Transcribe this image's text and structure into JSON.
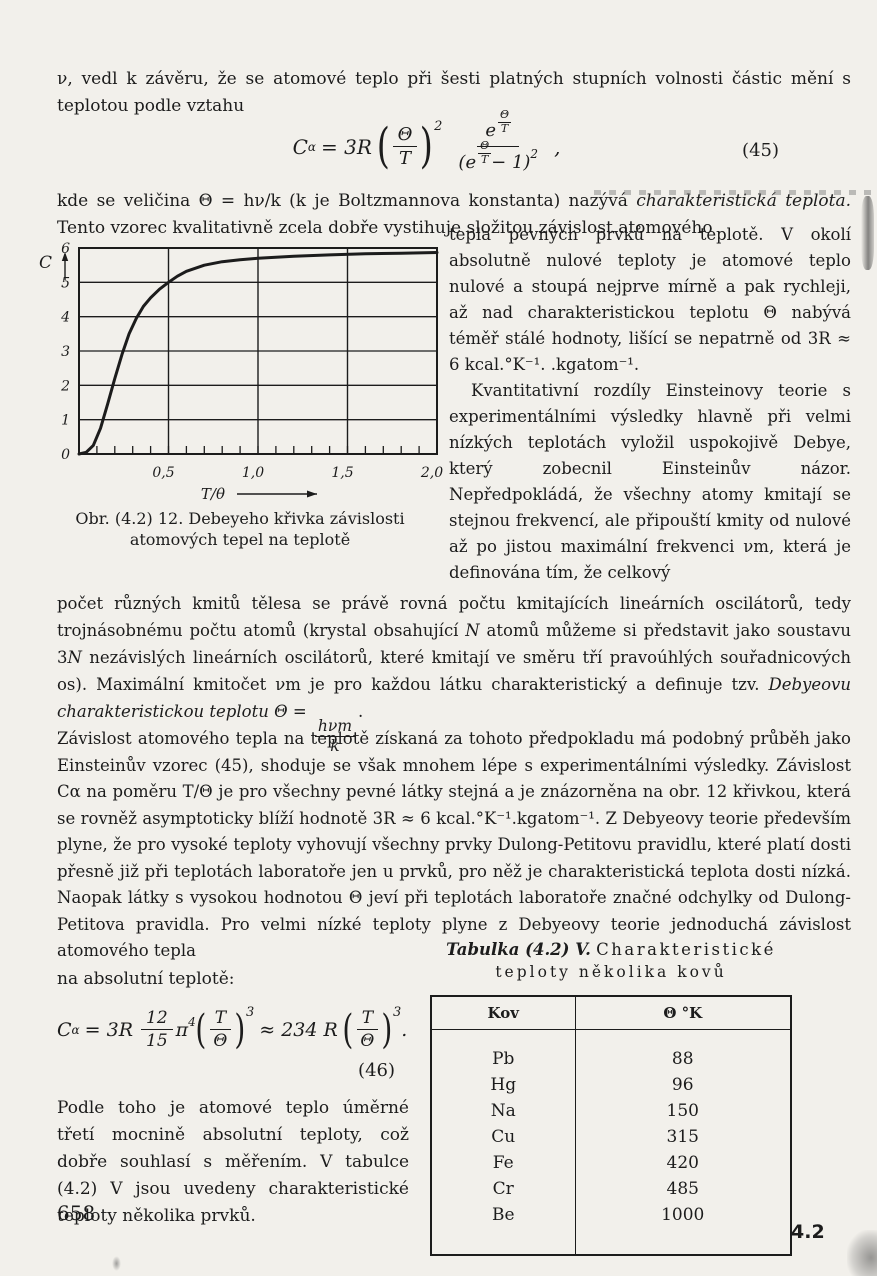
{
  "colors": {
    "paper": "#f2f0eb",
    "ink": "#1c1c1c"
  },
  "intro": {
    "para1": "ν, vedl k závěru, že se atomové teplo při šesti platných stupních volnosti částic mění s teplotou podle vztahu"
  },
  "eq45": {
    "C": "C",
    "sub": "α",
    "rel": "= 3R",
    "lparen": "(",
    "f1num": "Θ",
    "f1den": "T",
    "rparen": ")",
    "f1exp": "2",
    "e": "e",
    "expnum": "Θ",
    "expden": "T",
    "dpre": "(e",
    "expnum2": "Θ",
    "expden2": "T",
    "dmid": "− 1)",
    "dexp": "2",
    "comma": ",",
    "label": "(45)"
  },
  "para_kde": {
    "t1": "kde se veličina Θ = hν/k (k je Boltzmannova konstanta) nazývá ",
    "i1": "charakteristická teplota.",
    "t2": " Tento vzorec kvalitativně zcela dobře vystihuje složitou závislost atomového"
  },
  "right_column": {
    "p1": "tepla pevných prvků na teplotě. V okolí absolutně nulové teploty je atomové teplo nulové a stoupá nejprve mírně a pak rychleji, až nad charakteristickou teplotu Θ nabývá téměř stálé hodnoty, lišící se nepatrně od 3R ≈ 6 kcal.°K⁻¹. .kgatom⁻¹.",
    "p2": "Kvantitativní rozdíly Einsteinovy teorie s experimentálními výsledky hlavně při velmi nízkých teplotách vyložil uspokojivě Debye, který zobecnil Einsteinův názor. Nepředpokládá, že všechny atomy kmitají se stejnou frekvencí, ale připouští kmity od nulové až po jistou maximální frekvenci νm, která je definována tím, že celkový"
  },
  "figure": {
    "caption": "Obr. (4.2) 12. Debeyeho křivka závislosti atomových tepel na teplotě"
  },
  "chart_data": {
    "type": "line",
    "title": "Obr. (4.2) 12. Debeyeho křivka závislosti atomových tepel na teplotě",
    "xlabel": "T/θ",
    "ylabel": "C",
    "xlim": [
      0,
      2.0
    ],
    "ylim": [
      0,
      6
    ],
    "x_ticks_major": [
      0.5,
      1.0,
      1.5,
      2.0
    ],
    "x_tick_labels": [
      "0,5",
      "1,0",
      "1,5",
      "2,0"
    ],
    "x_minor_step": 0.1,
    "y_ticks": [
      0,
      1,
      2,
      3,
      4,
      5,
      6
    ],
    "grid": true,
    "legend": "none",
    "points": [
      [
        0,
        0
      ],
      [
        0.04,
        0.05
      ],
      [
        0.08,
        0.25
      ],
      [
        0.12,
        0.75
      ],
      [
        0.16,
        1.45
      ],
      [
        0.2,
        2.2
      ],
      [
        0.24,
        2.9
      ],
      [
        0.28,
        3.5
      ],
      [
        0.32,
        3.95
      ],
      [
        0.36,
        4.3
      ],
      [
        0.4,
        4.55
      ],
      [
        0.45,
        4.8
      ],
      [
        0.5,
        5.0
      ],
      [
        0.55,
        5.18
      ],
      [
        0.6,
        5.32
      ],
      [
        0.7,
        5.5
      ],
      [
        0.8,
        5.6
      ],
      [
        0.9,
        5.66
      ],
      [
        1.0,
        5.7
      ],
      [
        1.2,
        5.76
      ],
      [
        1.4,
        5.8
      ],
      [
        1.6,
        5.83
      ],
      [
        1.8,
        5.85
      ],
      [
        2.0,
        5.87
      ]
    ]
  },
  "para_oscillators": {
    "t1": "počet různých kmitů tělesa se právě rovná počtu kmitajících lineárních oscilátorů, tedy trojnásobnému počtu atomů (krystal obsahující ",
    "i1": "N",
    "t2": " atomů můžeme si představit jako soustavu 3",
    "i2": "N",
    "t3": " nezávislých lineárních oscilátorů, které kmitají ve směru tří pravoúhlých souřadnicových os). Maximální kmitočet νm je pro každou látku charakteristický a definuje tzv. ",
    "i3": "Debyeovu charakteristickou teplotu Θ = ",
    "fnum": "hνm",
    "fden": "k",
    "t4": "."
  },
  "para_zavislost": "Závislost atomového tepla na teplotě získaná za tohoto předpokladu má podobný průběh jako Einsteinův vzorec (45), shoduje se však mnohem lépe s experimentálními výsledky. Závislost Cα na poměru T/Θ je pro všechny pevné látky stejná a je znázorněna na obr. 12 křivkou, která se rovněž asymptoticky blíží hodnotě 3R ≈ 6 kcal.°K⁻¹.kgatom⁻¹. Z Debyeovy teorie především plyne, že pro vysoké teploty vyhovují všechny prvky Dulong-Petitovu pravidlu, které platí dosti přesně již při teplotách laboratoře jen u prvků, pro něž je charakteristická teplota dosti nízká. Naopak látky s vysokou hodnotou Θ jeví při teplotách laboratoře značné odchylky od Dulong-Petitova pravidla. Pro velmi nízké teploty plyne z Debyeovy teorie jednoduchá závislost atomového tepla",
  "left_bottom": {
    "lead": "na absolutní teplotě:",
    "para": "Podle toho je atomové teplo úměrné třetí mocnině absolutní teploty, což dobře souhlasí s měřením. V tabulce (4.2) V jsou uvedeny charakteristické teploty několika prvků."
  },
  "eq46": {
    "C": "C",
    "sub": "α",
    "rel": "= 3R",
    "fnum": "12",
    "fden": "15",
    "pi": "π",
    "piexp": "4",
    "lparen": "(",
    "tnum": "T",
    "tden": "Θ",
    "rparen": ")",
    "texp": "3",
    "approx": "≈ 234 R",
    "lparen2": "(",
    "t2num": "T",
    "t2den": "Θ",
    "rparen2": ")",
    "t2exp": "3",
    "dot": ".",
    "label": "(46)"
  },
  "table": {
    "title_italic": "Tabulka (4.2) V.",
    "title_rest": "Charakteristické",
    "title_line2": "teploty několika kovů",
    "headers": [
      "Kov",
      "Θ °K"
    ],
    "rows": [
      [
        "Pb",
        "88"
      ],
      [
        "Hg",
        "96"
      ],
      [
        "Na",
        "150"
      ],
      [
        "Cu",
        "315"
      ],
      [
        "Fe",
        "420"
      ],
      [
        "Cr",
        "485"
      ],
      [
        "Be",
        "1000"
      ]
    ]
  },
  "footer": {
    "page_number": "658",
    "section_tag": "4.2"
  }
}
